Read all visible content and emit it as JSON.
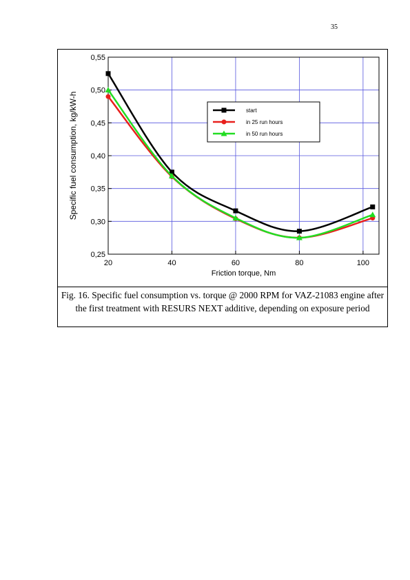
{
  "page_number": "35",
  "chart_data": {
    "type": "line",
    "x_label": "Friction torque, Nm",
    "y_label": "Specific fuel consumption, kg/kW-h",
    "x": [
      20,
      40,
      60,
      80,
      103
    ],
    "series": [
      {
        "name": "start",
        "color": "#000000",
        "marker": "square",
        "values": [
          0.525,
          0.375,
          0.316,
          0.285,
          0.322
        ]
      },
      {
        "name": "in 25 run hours",
        "color": "#e8201c",
        "marker": "circle",
        "values": [
          0.49,
          0.368,
          0.304,
          0.275,
          0.305
        ]
      },
      {
        "name": "in 50 run hours",
        "color": "#22dd22",
        "marker": "triangle",
        "values": [
          0.5,
          0.369,
          0.305,
          0.275,
          0.31
        ]
      }
    ],
    "xlim": [
      20,
      105
    ],
    "xticks": [
      20,
      40,
      60,
      80,
      100
    ],
    "ylim": [
      0.25,
      0.55
    ],
    "yticks": [
      {
        "value": 0.25,
        "label": "0,25"
      },
      {
        "value": 0.3,
        "label": "0,30"
      },
      {
        "value": 0.35,
        "label": "0,35"
      },
      {
        "value": 0.4,
        "label": "0,40"
      },
      {
        "value": 0.45,
        "label": "0,45"
      },
      {
        "value": 0.5,
        "label": "0,50"
      },
      {
        "value": 0.55,
        "label": "0,55"
      }
    ],
    "grid": true,
    "grid_color": "#5555dd"
  },
  "caption": "Fig. 16. Specific fuel consumption vs. torque @ 2000 RPM for VAZ-21083 engine after the first treatment with RESURS NEXT additive, depending on exposure period"
}
